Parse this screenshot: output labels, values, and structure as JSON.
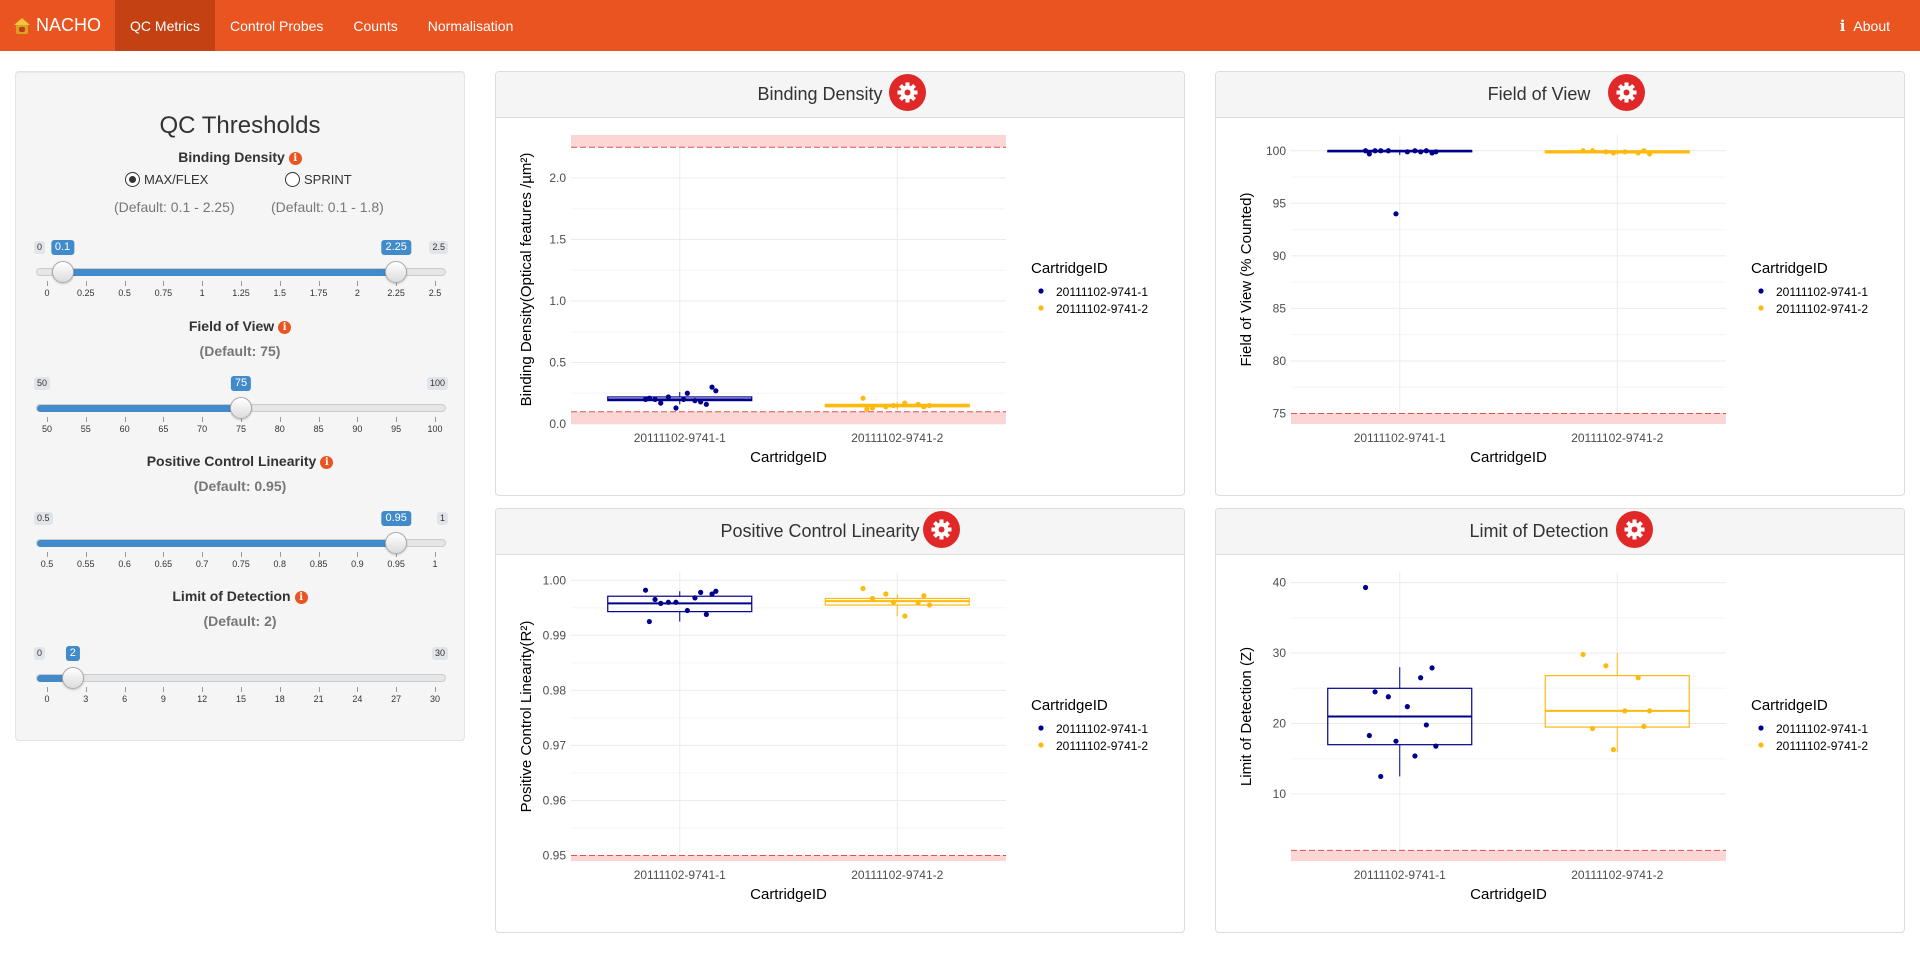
{
  "navbar": {
    "brand": "NACHO",
    "tabs": [
      {
        "label": "QC Metrics",
        "active": true
      },
      {
        "label": "Control Probes",
        "active": false
      },
      {
        "label": "Counts",
        "active": false
      },
      {
        "label": "Normalisation",
        "active": false
      }
    ],
    "about_label": "About",
    "color": "#e95420",
    "active_color": "#c34113"
  },
  "sidebar": {
    "title": "QC Thresholds",
    "binding_density": {
      "label": "Binding Density",
      "radio_max": "MAX/FLEX",
      "radio_sprint": "SPRINT",
      "selected": "MAX/FLEX",
      "default_max": "(Default: 0.1 - 2.25)",
      "default_sprint": "(Default: 0.1 - 1.8)",
      "slider": {
        "min": 0,
        "max": 2.5,
        "min_label": "0",
        "max_label": "2.5",
        "from": 0.1,
        "to": 2.25,
        "from_label": "0.1",
        "to_label": "2.25",
        "ticks": [
          0,
          0.25,
          0.5,
          0.75,
          1,
          1.25,
          1.5,
          1.75,
          2,
          2.25,
          2.5
        ],
        "tick_labels": [
          "0",
          "0.25",
          "0.5",
          "0.75",
          "1",
          "1.25",
          "1.5",
          "1.75",
          "2",
          "2.25",
          "2.5"
        ]
      }
    },
    "field_of_view": {
      "label": "Field of View",
      "default": "(Default: 75)",
      "slider": {
        "min": 50,
        "max": 100,
        "min_label": "50",
        "max_label": "100",
        "value": 75,
        "value_label": "75",
        "ticks": [
          50,
          55,
          60,
          65,
          70,
          75,
          80,
          85,
          90,
          95,
          100
        ],
        "tick_labels": [
          "50",
          "55",
          "60",
          "65",
          "70",
          "75",
          "80",
          "85",
          "90",
          "95",
          "100"
        ]
      }
    },
    "positive_control_linearity": {
      "label": "Positive Control Linearity",
      "default": "(Default: 0.95)",
      "slider": {
        "min": 0.5,
        "max": 1,
        "min_label": "0.5",
        "max_label": "1",
        "value": 0.95,
        "value_label": "0.95",
        "ticks": [
          0.5,
          0.55,
          0.6,
          0.65,
          0.7,
          0.75,
          0.8,
          0.85,
          0.9,
          0.95,
          1
        ],
        "tick_labels": [
          "0.5",
          "0.55",
          "0.6",
          "0.65",
          "0.7",
          "0.75",
          "0.8",
          "0.85",
          "0.9",
          "0.95",
          "1"
        ]
      }
    },
    "limit_of_detection": {
      "label": "Limit of Detection",
      "default": "(Default: 2)",
      "slider": {
        "min": 0,
        "max": 30,
        "min_label": "0",
        "max_label": "30",
        "value": 2,
        "value_label": "2",
        "ticks": [
          0,
          3,
          6,
          9,
          12,
          15,
          18,
          21,
          24,
          27,
          30
        ],
        "tick_labels": [
          "0",
          "3",
          "6",
          "9",
          "12",
          "15",
          "18",
          "21",
          "24",
          "27",
          "30"
        ]
      }
    }
  },
  "colors": {
    "series1": "#00008b",
    "series2": "#ffb90f",
    "threshold_fill": "#fcd5d5",
    "threshold_line": "#e05050",
    "gear": "#e02828",
    "slider_blue": "#428bca"
  },
  "panels": [
    {
      "title": "Binding Density"
    },
    {
      "title": "Field of View"
    },
    {
      "title": "Positive Control Linearity"
    },
    {
      "title": "Limit of Detection"
    }
  ],
  "chart_data": [
    {
      "type": "box",
      "title": "Binding Density",
      "xlabel": "CartridgeID",
      "ylabel": "Binding Density(Optical features /µm²)",
      "categories": [
        "20111102-9741-1",
        "20111102-9741-2"
      ],
      "ylim": [
        0,
        2.35
      ],
      "yticks": [
        0.0,
        0.5,
        1.0,
        1.5,
        2.0
      ],
      "ytick_labels": [
        "0.0",
        "0.5",
        "1.0",
        "1.5",
        "2.0"
      ],
      "threshold_low": 0.1,
      "threshold_high": 2.25,
      "legend_title": "CartridgeID",
      "series": [
        {
          "name": "20111102-9741-1",
          "box": [
            0.16,
            0.19,
            0.2,
            0.22,
            0.26
          ],
          "points": [
            0.2,
            0.18,
            0.22,
            0.3,
            0.2,
            0.25,
            0.16,
            0.13,
            0.21,
            0.19,
            0.27,
            0.17,
            0.2
          ]
        },
        {
          "name": "20111102-9741-2",
          "box": [
            0.12,
            0.14,
            0.15,
            0.16,
            0.18
          ],
          "points": [
            0.21,
            0.16,
            0.14,
            0.15,
            0.13,
            0.17,
            0.14,
            0.15,
            0.12
          ]
        }
      ]
    },
    {
      "type": "box",
      "title": "Field of View",
      "xlabel": "CartridgeID",
      "ylabel": "Field of View (% Counted)",
      "categories": [
        "20111102-9741-1",
        "20111102-9741-2"
      ],
      "ylim": [
        74,
        101.5
      ],
      "yticks": [
        75,
        80,
        85,
        90,
        95,
        100
      ],
      "ytick_labels": [
        "75",
        "80",
        "85",
        "90",
        "95",
        "100"
      ],
      "threshold_low": 75,
      "legend_title": "CartridgeID",
      "series": [
        {
          "name": "20111102-9741-1",
          "box": [
            99.6,
            99.9,
            100,
            100,
            100
          ],
          "points": [
            100,
            99.9,
            100,
            99.8,
            100,
            99.9,
            100,
            94,
            99.7,
            100,
            99.9,
            100
          ]
        },
        {
          "name": "20111102-9741-2",
          "box": [
            99.6,
            99.8,
            99.9,
            100,
            100
          ],
          "points": [
            100,
            99.8,
            99.9,
            99.7,
            100,
            99.9,
            100,
            99.8
          ]
        }
      ]
    },
    {
      "type": "box",
      "title": "Positive Control Linearity",
      "xlabel": "CartridgeID",
      "ylabel": "Positive Control Linearity(R²)",
      "categories": [
        "20111102-9741-1",
        "20111102-9741-2"
      ],
      "ylim": [
        0.949,
        1.0015
      ],
      "yticks": [
        0.95,
        0.96,
        0.97,
        0.98,
        0.99,
        1.0
      ],
      "ytick_labels": [
        "0.95",
        "0.96",
        "0.97",
        "0.98",
        "0.99",
        "1.00"
      ],
      "threshold_low": 0.95,
      "legend_title": "CartridgeID",
      "series": [
        {
          "name": "20111102-9741-1",
          "box": [
            0.9925,
            0.9943,
            0.9958,
            0.9971,
            0.998
          ],
          "points": [
            0.9982,
            0.9978,
            0.996,
            0.9975,
            0.9965,
            0.9945,
            0.9938,
            0.996,
            0.9925,
            0.9968,
            0.998,
            0.9958
          ]
        },
        {
          "name": "20111102-9741-2",
          "box": [
            0.9935,
            0.9955,
            0.9962,
            0.9967,
            0.9975
          ],
          "points": [
            0.9985,
            0.996,
            0.9975,
            0.9955,
            0.9967,
            0.9935,
            0.9972,
            0.996
          ]
        }
      ]
    },
    {
      "type": "box",
      "title": "Limit of Detection",
      "xlabel": "CartridgeID",
      "ylabel": "Limit of Detection (Z)",
      "categories": [
        "20111102-9741-1",
        "20111102-9741-2"
      ],
      "ylim": [
        0.5,
        41.5
      ],
      "yticks": [
        10,
        20,
        30,
        40
      ],
      "ytick_labels": [
        "10",
        "20",
        "30",
        "40"
      ],
      "threshold_low": 2,
      "legend_title": "CartridgeID",
      "series": [
        {
          "name": "20111102-9741-1",
          "box": [
            12.5,
            17,
            21,
            25,
            28
          ],
          "points": [
            39.3,
            26.5,
            23.8,
            27.9,
            24.5,
            22.4,
            19.8,
            17.5,
            18.3,
            15.4,
            16.8,
            12.5
          ]
        },
        {
          "name": "20111102-9741-2",
          "box": [
            16,
            19.5,
            21.8,
            26.8,
            30
          ],
          "points": [
            29.8,
            26.5,
            28.2,
            21.8,
            19.3,
            21.8,
            19.6,
            16.3
          ]
        }
      ]
    }
  ]
}
